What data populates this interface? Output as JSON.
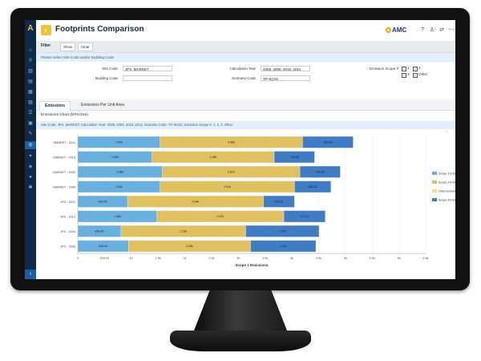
{
  "app": {
    "title": "Footprints Comparison",
    "brand": "AMC"
  },
  "toolbar": {
    "filter_label": "Filter",
    "show_label": "Show",
    "clear_label": "Clear"
  },
  "notice": "Please select Site Code and/or Building Code",
  "form": {
    "site_code_label": "Site Code",
    "site_code_value": "JPX, MARKET",
    "building_code_label": "Building Code",
    "building_code_value": "",
    "calc_year_label": "Calculation Year",
    "calc_year_value": "2008, 2009, 2010, 2011",
    "scenario_label": "Scenario Code",
    "scenario_value": "TP-SCN1",
    "scope_label": "Emission Scope #",
    "scope_options": [
      {
        "label": "1",
        "checked": true
      },
      {
        "label": "2",
        "checked": true
      },
      {
        "label": "3",
        "checked": true
      },
      {
        "label": "Other",
        "checked": true
      }
    ]
  },
  "tabs": [
    {
      "label": "Emissions",
      "active": true
    },
    {
      "label": "Emissions Per Unit Area",
      "active": false
    }
  ],
  "panel": {
    "title": "Emissions Chart (MTCO2e)",
    "subnote": "Site Code: JPX, MARKET; Calculation Year: 2008, 2009, 2010, 2011; Scenario Code: TP-SCN1; Emission Scope #: 1, 2, 3, Other"
  },
  "chart_data": {
    "type": "bar",
    "orientation": "horizontal",
    "stacked": true,
    "categories": [
      "MARKET - 2011",
      "MARKET - 2010",
      "MARKET - 2009",
      "MARKET - 2008",
      "JPX - 2011",
      "JPX - 2010",
      "JPX - 2009",
      "JPX - 2008"
    ],
    "series": [
      {
        "name": "Scope 1 Emissions",
        "color": "#6ab0de",
        "values": [
          1540,
          1390,
          1580,
          1540,
          930,
          1480,
          808,
          948
        ]
      },
      {
        "name": "Scope 2 Emissions",
        "color": "#e0c060",
        "values": [
          2660,
          2280,
          2570,
          2510,
          2540,
          2370,
          2330,
          2280
        ]
      },
      {
        "name": "Other Emissions",
        "color": "#f3dd94",
        "values": [
          0,
          0,
          0,
          0,
          0,
          0,
          0,
          0
        ]
      },
      {
        "name": "Scope 3 Emissions",
        "color": "#3f7cc4",
        "values": [
          945,
          755,
          755,
          680,
          578,
          773,
          1370,
          1220
        ]
      }
    ],
    "data_labels": [
      [
        "1.54k",
        "2.66k",
        "",
        "945.45"
      ],
      [
        "1.39k",
        "2.28k",
        "",
        "755.85"
      ],
      [
        "1.58k",
        "2.57k",
        "",
        "755.85"
      ],
      [
        "1.54k",
        "2.51k",
        "",
        "680.02"
      ],
      [
        "930.55",
        "2.54k",
        "",
        "578.31"
      ],
      [
        "1.48k",
        "2.37k",
        "",
        "773.22"
      ],
      [
        "808.30",
        "2.33k",
        "",
        "1.37k"
      ],
      [
        "948.60",
        "2.28k",
        "",
        "1.22k"
      ]
    ],
    "xlabel": "Scope 1 Emissions",
    "xlim": [
      0,
      6500
    ],
    "xticks": [
      "0",
      "500.00",
      "1k",
      "1.5k",
      "2k",
      "2.5k",
      "3k",
      "3.5k",
      "4k",
      "4.5k",
      "5k",
      "5.5k",
      "6k",
      "6.5k"
    ],
    "legend_position": "right",
    "grid": true
  }
}
